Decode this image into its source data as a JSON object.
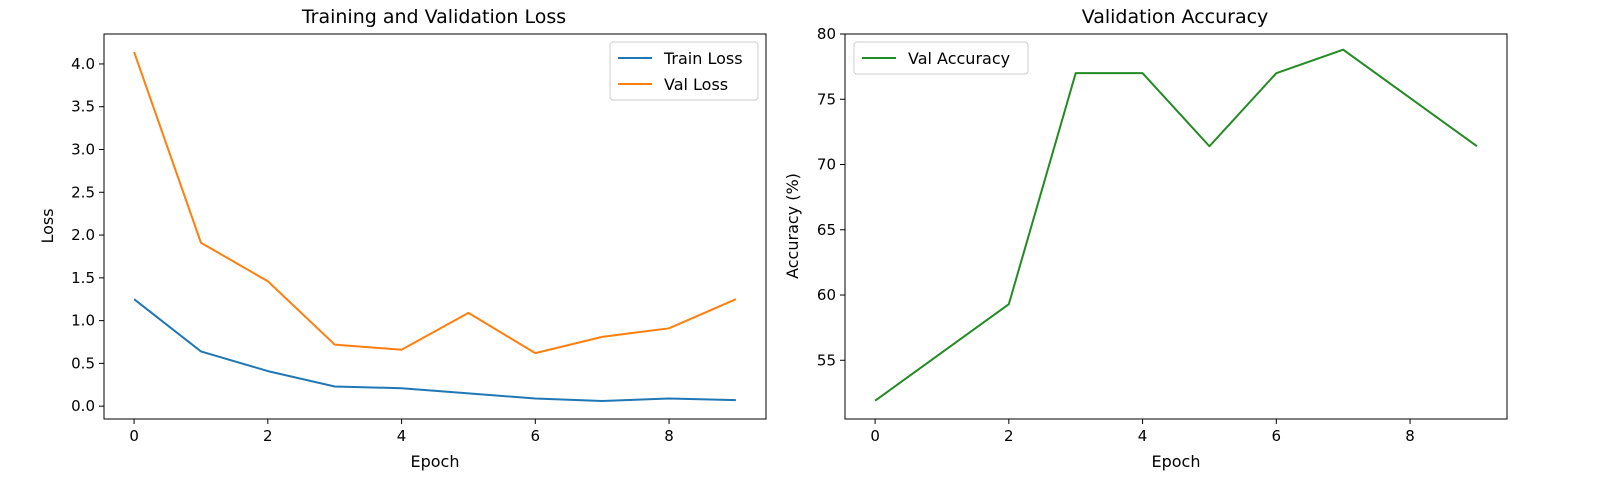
{
  "chart_data": [
    {
      "type": "line",
      "title": "Training and Validation Loss",
      "xlabel": "Epoch",
      "ylabel": "Loss",
      "x": [
        0,
        1,
        2,
        3,
        4,
        5,
        6,
        7,
        8,
        9
      ],
      "series": [
        {
          "name": "Train Loss",
          "color": "#1f77b4",
          "values": [
            1.25,
            0.64,
            0.41,
            0.23,
            0.21,
            0.15,
            0.09,
            0.06,
            0.09,
            0.07
          ]
        },
        {
          "name": "Val Loss",
          "color": "#ff7f0e",
          "values": [
            4.14,
            1.91,
            1.46,
            0.72,
            0.66,
            1.09,
            0.62,
            0.81,
            0.91,
            1.25
          ]
        }
      ],
      "xlim": [
        -0.45,
        9.45
      ],
      "ylim": [
        -0.15,
        4.35
      ],
      "xticks": [
        0,
        2,
        4,
        6,
        8
      ],
      "xtick_labels": [
        "0",
        "2",
        "4",
        "6",
        "8"
      ],
      "yticks": [
        0.0,
        0.5,
        1.0,
        1.5,
        2.0,
        2.5,
        3.0,
        3.5,
        4.0
      ],
      "ytick_labels": [
        "0.0",
        "0.5",
        "1.0",
        "1.5",
        "2.0",
        "2.5",
        "3.0",
        "3.5",
        "4.0"
      ],
      "grid": false,
      "legend_position": "top-right"
    },
    {
      "type": "line",
      "title": "Validation Accuracy",
      "xlabel": "Epoch",
      "ylabel": "Accuracy (%)",
      "x": [
        0,
        1,
        2,
        3,
        4,
        5,
        6,
        7,
        8,
        9
      ],
      "series": [
        {
          "name": "Val Accuracy",
          "color": "#228b22",
          "values": [
            51.9,
            55.6,
            59.3,
            77.0,
            77.0,
            71.4,
            77.0,
            78.8,
            75.1,
            71.4
          ]
        }
      ],
      "xlim": [
        -0.45,
        9.45
      ],
      "ylim": [
        50.5,
        80.0
      ],
      "xticks": [
        0,
        2,
        4,
        6,
        8
      ],
      "xtick_labels": [
        "0",
        "2",
        "4",
        "6",
        "8"
      ],
      "yticks": [
        55,
        60,
        65,
        70,
        75,
        80
      ],
      "ytick_labels": [
        "55",
        "60",
        "65",
        "70",
        "75",
        "80"
      ],
      "grid": false,
      "legend_position": "top-left"
    }
  ]
}
